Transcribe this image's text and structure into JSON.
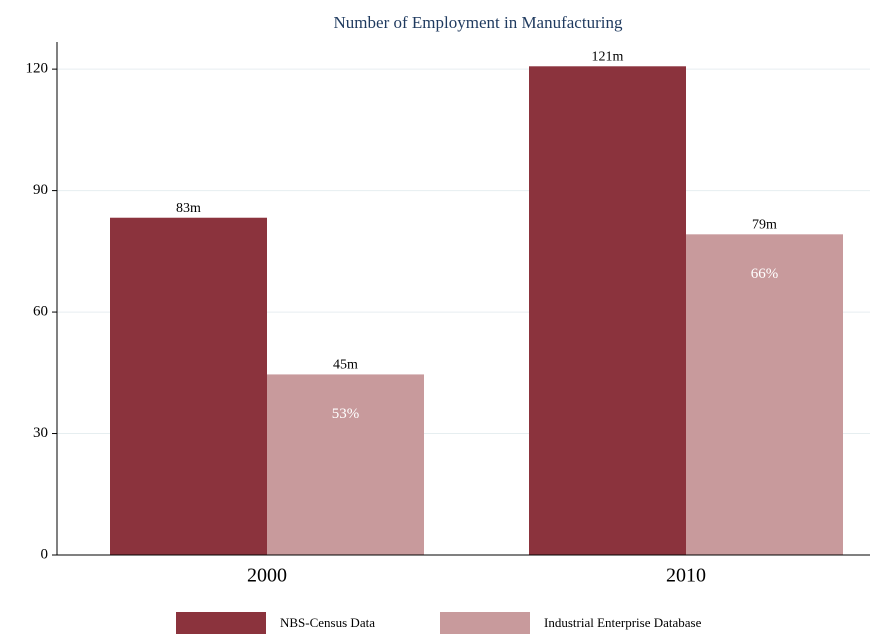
{
  "chart_data": {
    "type": "bar",
    "title": "Number of Employment in Manufacturing",
    "categories": [
      "2000",
      "2010"
    ],
    "series": [
      {
        "name": "NBS-Census Data",
        "color": "#8b333d",
        "values": [
          83.3,
          120.7
        ],
        "value_labels": [
          "83m",
          "121m"
        ]
      },
      {
        "name": "Industrial Enterprise Database",
        "color": "#c89a9c",
        "values": [
          44.6,
          79.2
        ],
        "value_labels": [
          "45m",
          "79m"
        ],
        "share_labels": [
          "53%",
          "66%"
        ]
      }
    ],
    "ylim": [
      0,
      126.7
    ],
    "yticks": [
      0,
      30,
      60,
      90,
      120
    ],
    "grid": true,
    "legend": "bottom"
  }
}
